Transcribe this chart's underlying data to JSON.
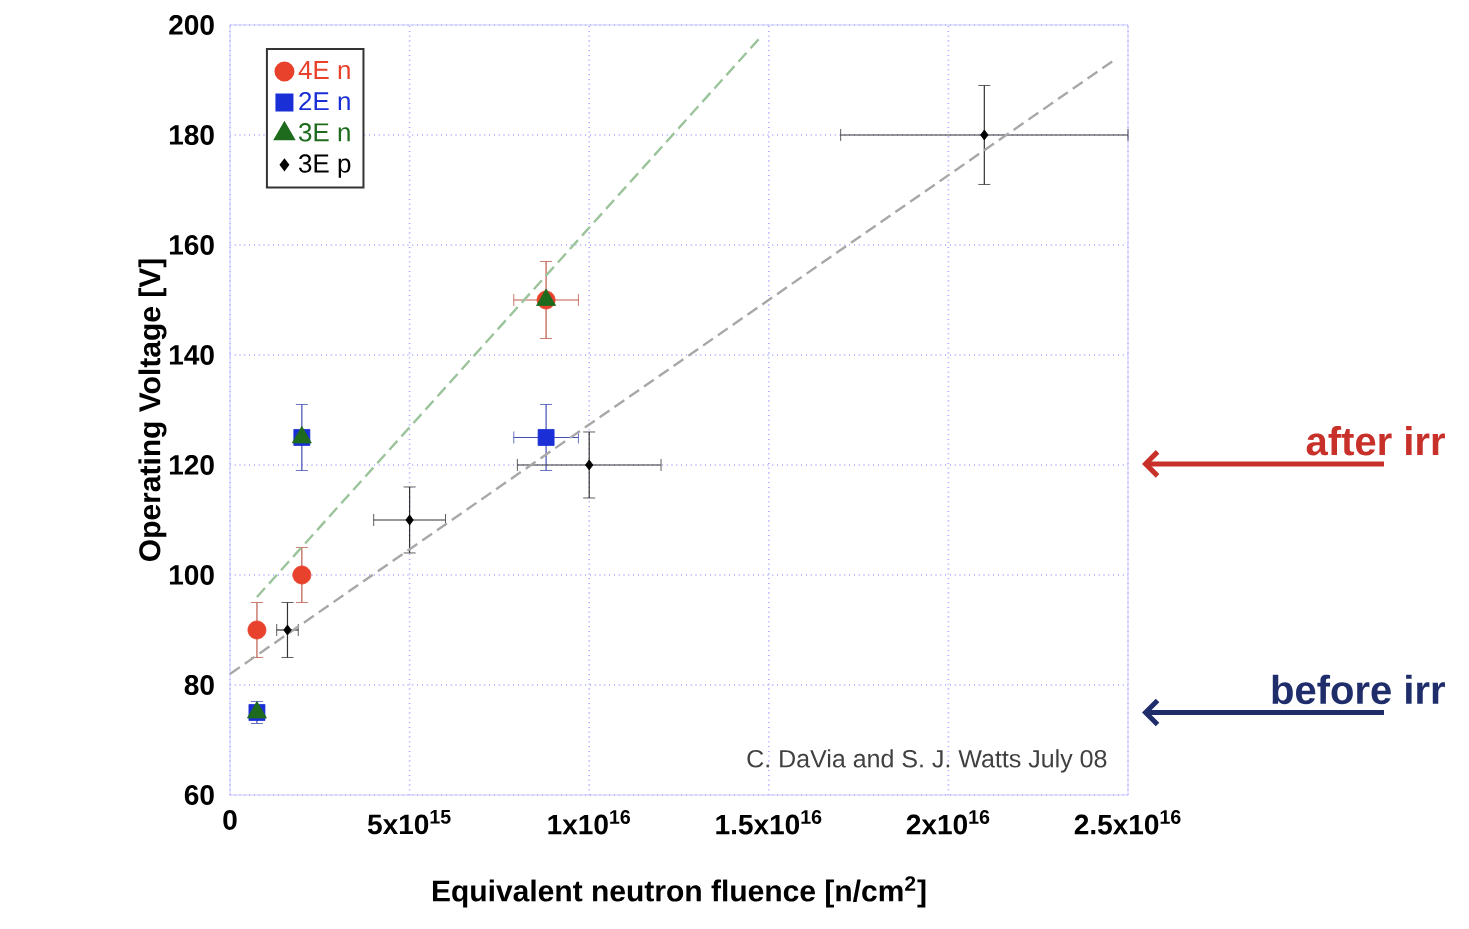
{
  "chart_data": {
    "type": "scatter",
    "xlabel": "Equivalent neutron fluence [n/cm$^{2}$]",
    "ylabel": "Operating Voltage [V]",
    "xlim": [
      0,
      25000000000000000
    ],
    "ylim": [
      60,
      200
    ],
    "xticks": [
      {
        "value": 0,
        "label": "0"
      },
      {
        "value": 5000000000000000,
        "label": "5x10$^{15}$"
      },
      {
        "value": 10000000000000000,
        "label": "1x10$^{16}$"
      },
      {
        "value": 15000000000000000,
        "label": "1.5x10$^{16}$"
      },
      {
        "value": 20000000000000000,
        "label": "2x10$^{16}$"
      },
      {
        "value": 25000000000000000,
        "label": "2.5x10$^{16}$"
      }
    ],
    "yticks": [
      60,
      80,
      100,
      120,
      140,
      160,
      180,
      200
    ],
    "grid": true,
    "legend": "top left",
    "series": [
      {
        "name": "4E n",
        "color": "#e8412c",
        "marker": "circle",
        "x": [
          750000000000000,
          2000000000000000,
          8800000000000000
        ],
        "values": [
          90,
          100,
          150
        ],
        "errors": [
          5,
          5,
          7
        ],
        "xerrors": [
          null,
          null,
          900000000000000
        ]
      },
      {
        "name": "2E n",
        "color": "#1a2fd6",
        "marker": "square",
        "x": [
          750000000000000,
          2000000000000000,
          8800000000000000
        ],
        "values": [
          75,
          125,
          125
        ],
        "errors": [
          2,
          6,
          6
        ],
        "xerrors": [
          null,
          null,
          900000000000000
        ]
      },
      {
        "name": "3E n",
        "color": "#1e6b1e",
        "marker": "triangle",
        "x": [
          750000000000000,
          2000000000000000,
          8800000000000000
        ],
        "values": [
          75,
          125,
          150
        ]
      },
      {
        "name": "3E p",
        "color": "#000000",
        "marker": "diamond",
        "x": [
          1600000000000000,
          5000000000000000,
          10000000000000000,
          21000000000000000
        ],
        "values": [
          90,
          110,
          120,
          180
        ],
        "errors": [
          5,
          6,
          6,
          9
        ],
        "xerrors": [
          300000000000000,
          1000000000000000,
          2000000000000000,
          4000000000000000
        ]
      },
      {
        "type": "line",
        "color": "#9cc49c",
        "line_style": "dashed",
        "x": [
          750000000000000,
          14800000000000000
        ],
        "values": [
          96,
          198
        ]
      },
      {
        "type": "line",
        "color": "#a8a8a8",
        "line_style": "dashed",
        "x": [
          0,
          24700000000000000
        ],
        "values": [
          82,
          194
        ]
      }
    ],
    "annotations": [
      "C. DaVia and S. J. Watts July 08",
      "after irr",
      "before irr"
    ]
  }
}
